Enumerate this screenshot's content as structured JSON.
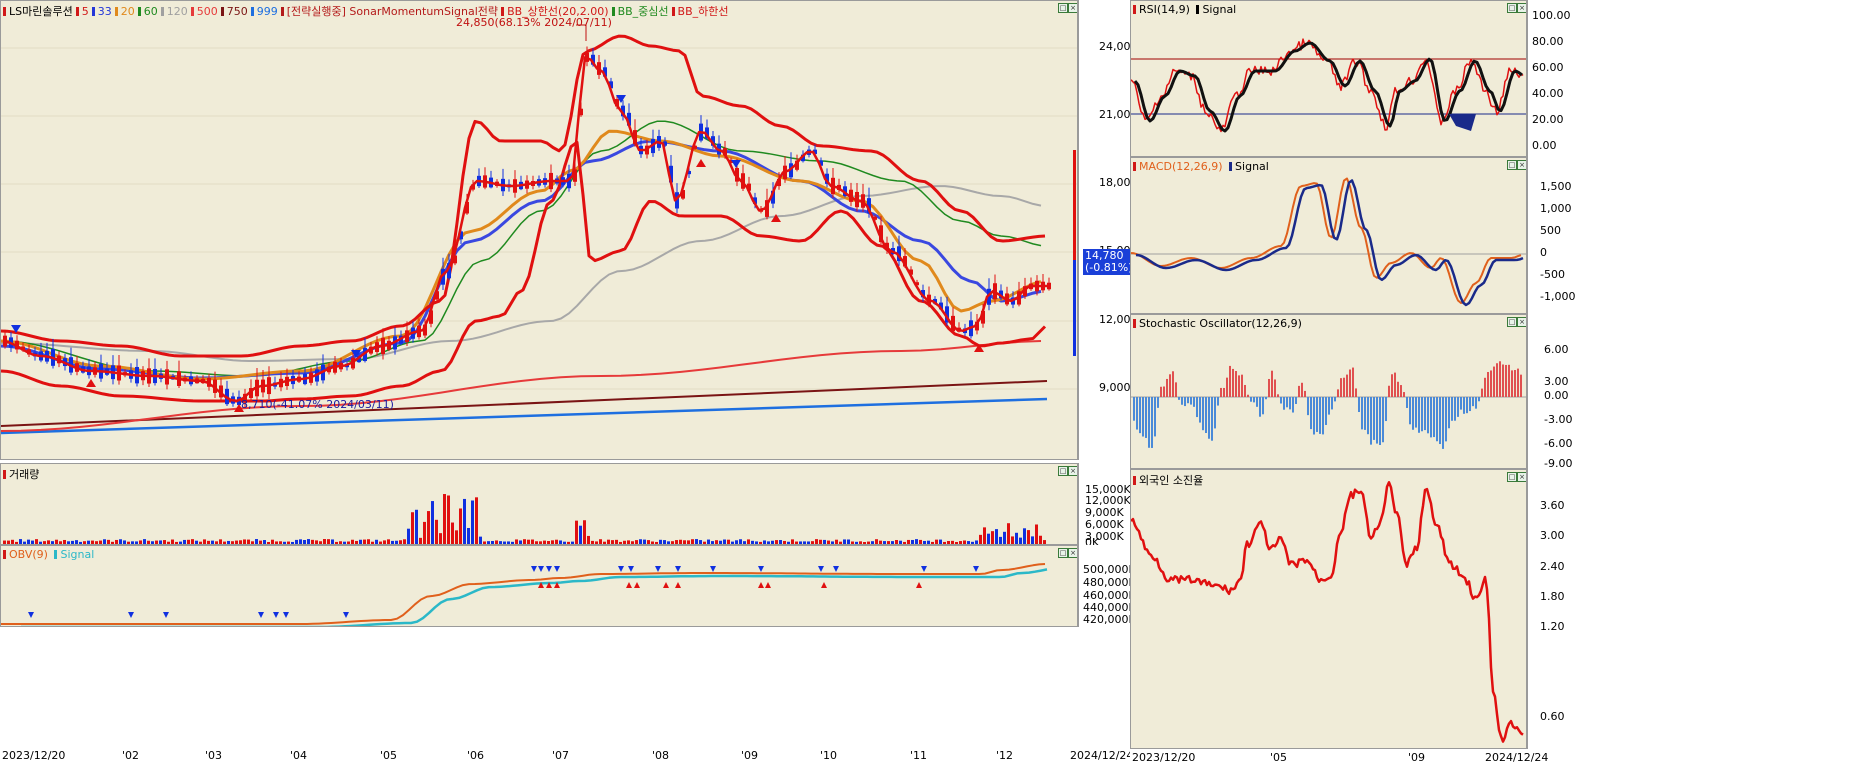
{
  "main_chart": {
    "legend": [
      {
        "text": "LS마린솔루션",
        "color": "#d11818"
      },
      {
        "text": "5",
        "color": "#d11818"
      },
      {
        "text": "33",
        "color": "#2436d8"
      },
      {
        "text": "20",
        "color": "#e0891c"
      },
      {
        "text": "60",
        "color": "#1f8a1f"
      },
      {
        "text": "120",
        "color": "#a0a0a0"
      },
      {
        "text": "500",
        "color": "#e63a3a"
      },
      {
        "text": "750",
        "color": "#7a1414"
      },
      {
        "text": "999",
        "color": "#1e6fe0"
      },
      {
        "text": "[전략실행중] SonarMomentumSignal전략",
        "color": "#b41a1a"
      },
      {
        "text": "BB_상한선(20,2.00)",
        "color": "#d11818"
      },
      {
        "text": "BB_중심선",
        "color": "#1f8a1f"
      },
      {
        "text": "BB_하한선",
        "color": "#d11818"
      }
    ],
    "high_annotation": "24,850(68.13% 2024/07/11)",
    "low_annotation": "8,710(-41.07% 2024/03/11)",
    "current_price": "14,780",
    "current_change": "(-0.81%)",
    "y_ticks": [
      "24,000",
      "21,000",
      "18,000",
      "15,000",
      "12,000",
      "9,000"
    ]
  },
  "volume_pane": {
    "label": "거래량",
    "y_ticks": [
      "15,000K",
      "12,000K",
      "9,000K",
      "6,000K",
      "3,000K",
      "0K"
    ]
  },
  "obv_pane": {
    "label": "OBV(9)",
    "signal_label": "Signal",
    "y_ticks": [
      "500,000K",
      "480,000K",
      "460,000K",
      "440,000K",
      "420,000K"
    ]
  },
  "x_axis": {
    "labels": [
      "2023/12/20",
      "'02",
      "'03",
      "'04",
      "'05",
      "'06",
      "'07",
      "'08",
      "'09",
      "'10",
      "'11",
      "'12",
      "2024/12/24"
    ]
  },
  "rsi_pane": {
    "label": "RSI(14,9)",
    "signal_label": "Signal",
    "y_ticks": [
      "100.00",
      "80.00",
      "60.00",
      "40.00",
      "20.00",
      "0.00"
    ]
  },
  "macd_pane": {
    "label": "MACD(12,26,9)",
    "signal_label": "Signal",
    "y_ticks": [
      "1,500",
      "1,000",
      "500",
      "0",
      "-500",
      "-1,000"
    ]
  },
  "stoch_pane": {
    "label": "Stochastic Oscillator(12,26,9)",
    "y_ticks": [
      "6.00",
      "3.00",
      "0.00",
      "-3.00",
      "-6.00",
      "-9.00"
    ]
  },
  "foreign_pane": {
    "label": "외국인 소진율",
    "y_ticks": [
      "3.60",
      "3.00",
      "2.40",
      "1.80",
      "1.20",
      "0.60"
    ]
  },
  "right_x_axis": {
    "labels": [
      "2023/12/20",
      "'05",
      "'09",
      "2024/12/24"
    ]
  },
  "colors": {
    "bg": "#f0ecd8",
    "up": "#e01010",
    "down": "#1030e0"
  }
}
